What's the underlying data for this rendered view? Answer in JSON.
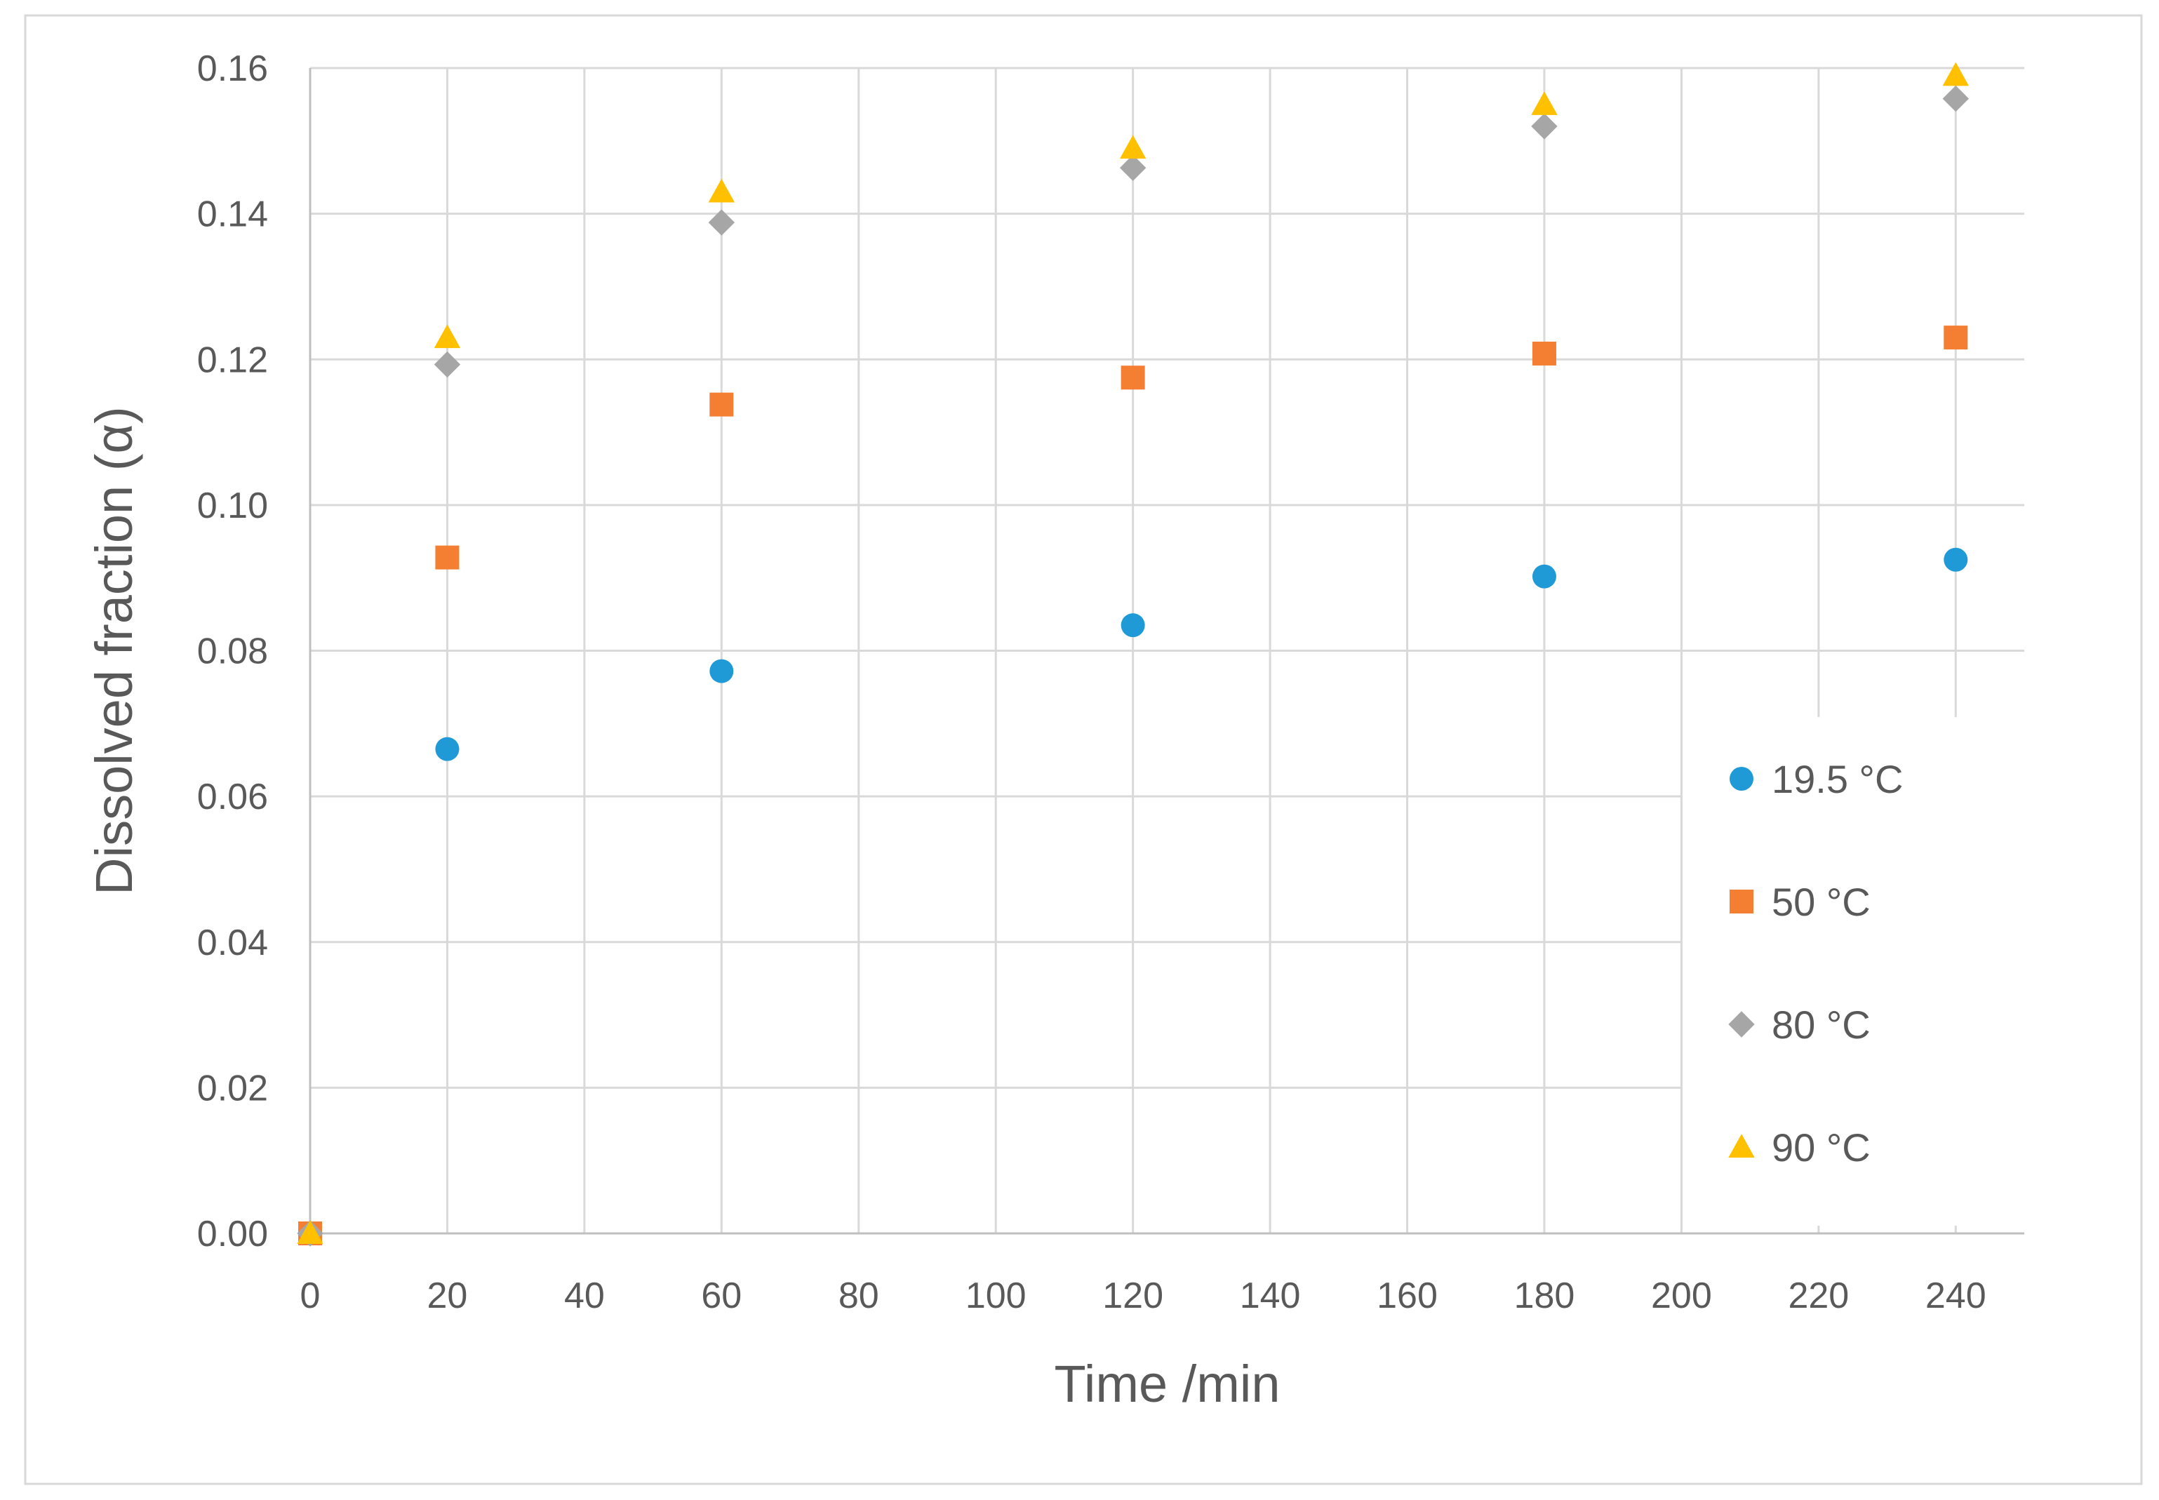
{
  "chart_data": {
    "type": "scatter",
    "title": "",
    "xlabel": "Time /min",
    "ylabel": "Dissolved fraction (α)",
    "xlim": [
      0,
      250
    ],
    "ylim": [
      0,
      0.16
    ],
    "x_ticks": [
      "0",
      "20",
      "40",
      "60",
      "80",
      "100",
      "120",
      "140",
      "160",
      "180",
      "200",
      "220",
      "240"
    ],
    "y_ticks": [
      "0.00",
      "0.02",
      "0.04",
      "0.06",
      "0.08",
      "0.10",
      "0.12",
      "0.14",
      "0.16"
    ],
    "grid": true,
    "legend_position": "right",
    "series": [
      {
        "name": "19.5 °C",
        "marker": "circle",
        "color": "#1f9ad6",
        "x": [
          0,
          20,
          60,
          120,
          180,
          240
        ],
        "y": [
          0.0,
          0.0665,
          0.0772,
          0.0835,
          0.0902,
          0.0925
        ]
      },
      {
        "name": "50 °C",
        "marker": "square",
        "color": "#f47f32",
        "x": [
          0,
          20,
          60,
          120,
          180,
          240
        ],
        "y": [
          0.0,
          0.0928,
          0.1138,
          0.1175,
          0.1208,
          0.123
        ]
      },
      {
        "name": "80 °C",
        "marker": "diamond",
        "color": "#a6a6a6",
        "x": [
          0,
          20,
          60,
          120,
          180,
          240
        ],
        "y": [
          0.0,
          0.1193,
          0.1388,
          0.1463,
          0.152,
          0.1558
        ]
      },
      {
        "name": "90 °C",
        "marker": "triangle",
        "color": "#ffc000",
        "x": [
          0,
          20,
          60,
          120,
          180,
          240
        ],
        "y": [
          0.0,
          0.123,
          0.143,
          0.149,
          0.155,
          0.159
        ]
      }
    ]
  }
}
